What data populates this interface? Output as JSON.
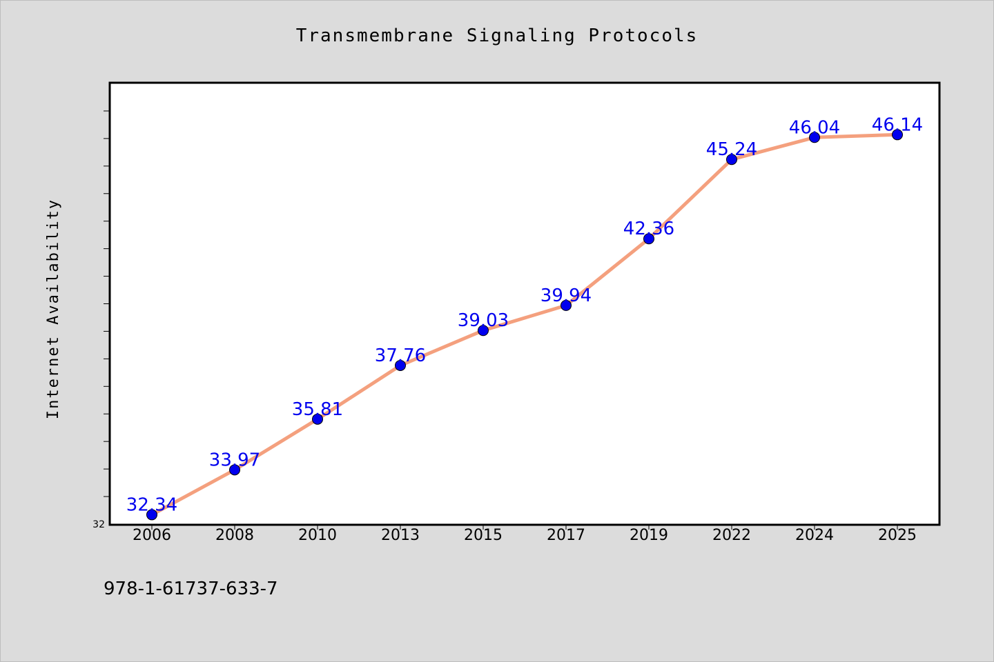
{
  "chart_data": {
    "type": "line",
    "title": "Transmembrane Signaling Protocols",
    "ylabel": "Internet Availability",
    "xlabel": "",
    "categories": [
      "2006",
      "2008",
      "2010",
      "2013",
      "2015",
      "2017",
      "2019",
      "2022",
      "2024",
      "2025"
    ],
    "values": [
      32.34,
      33.97,
      35.81,
      37.76,
      39.03,
      39.94,
      42.36,
      45.24,
      46.04,
      46.14
    ],
    "value_labels": [
      "32.34",
      "33.97",
      "35.81",
      "37.76",
      "39.03",
      "39.94",
      "42.36",
      "45.24",
      "46.04",
      "46.14"
    ],
    "ylim": [
      32,
      48
    ],
    "ytick_labels": [
      "32"
    ],
    "grid": false,
    "line_color": "#f4a07e",
    "marker_color": "#0000ee",
    "label_color": "#0000ee",
    "plot_background": "#ffffff",
    "page_background": "#dcdcdc"
  },
  "footer": {
    "isbn": "978-1-61737-633-7"
  }
}
